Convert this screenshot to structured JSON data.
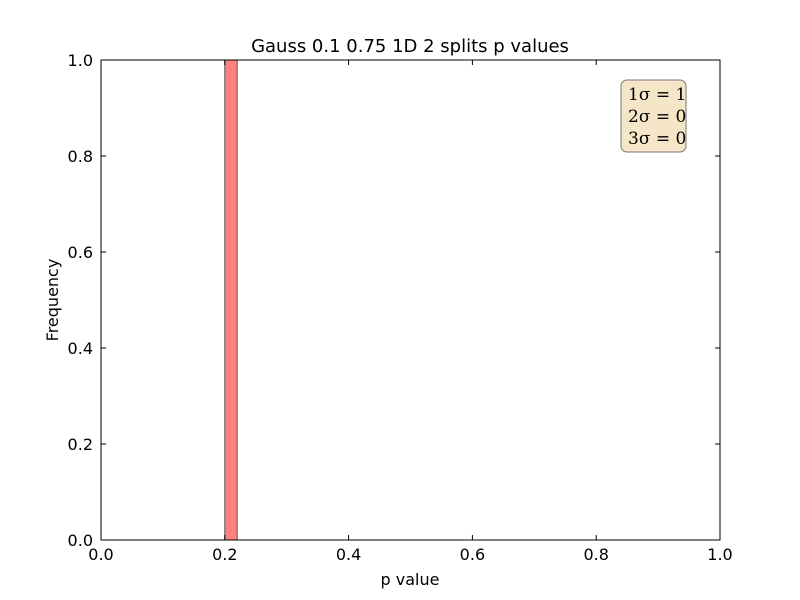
{
  "chart_data": {
    "type": "bar",
    "title": "Gauss 0.1 0.75 1D 2 splits p values",
    "xlabel": "p value",
    "ylabel": "Frequency",
    "xlim": [
      0.0,
      1.0
    ],
    "ylim": [
      0.0,
      1.0
    ],
    "x_ticks": [
      "0.0",
      "0.2",
      "0.4",
      "0.6",
      "0.8",
      "1.0"
    ],
    "y_ticks": [
      "0.0",
      "0.2",
      "0.4",
      "0.6",
      "0.8",
      "1.0"
    ],
    "bins": [
      {
        "x_start": 0.2,
        "x_end": 0.22,
        "value": 1.0
      }
    ],
    "bar_color": "#ff8080",
    "bar_edge_color": "#555555",
    "grid": false,
    "annotation": {
      "lines": [
        "1σ = 1",
        "2σ = 0",
        "3σ = 0"
      ],
      "position": "top-right",
      "background": "#f5e6c8"
    }
  }
}
